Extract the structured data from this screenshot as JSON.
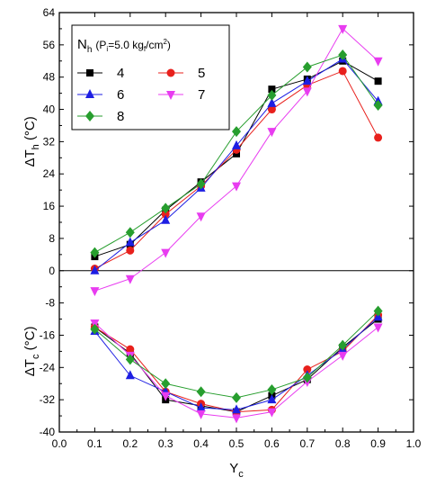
{
  "chart_data": {
    "type": "line",
    "x": [
      0.1,
      0.2,
      0.3,
      0.4,
      0.5,
      0.6,
      0.7,
      0.8,
      0.9
    ],
    "xlabel_main": "Y",
    "xlabel_sub": "c",
    "ylabel_top_main": "ΔT",
    "ylabel_top_sub": "h",
    "ylabel_top_unit": " (°C)",
    "ylabel_bottom_main": "ΔT",
    "ylabel_bottom_sub": "c",
    "ylabel_bottom_unit": " (°C)",
    "xlim": [
      0.0,
      1.0
    ],
    "ylim": [
      -40,
      64
    ],
    "xticks": [
      "0.0",
      "0.1",
      "0.2",
      "0.3",
      "0.4",
      "0.5",
      "0.6",
      "0.7",
      "0.8",
      "0.9",
      "1.0"
    ],
    "yticks": [
      "-40",
      "-32",
      "-24",
      "-16",
      "-8",
      "0",
      "8",
      "16",
      "24",
      "32",
      "40",
      "48",
      "56",
      "64"
    ],
    "legend": {
      "title_prefix": "N",
      "title_sub": "h",
      "title_paren": "(P",
      "title_paren_sub": "i",
      "title_value": "=5.0 kg",
      "title_unit_sub": "f",
      "title_unit": "/cm",
      "title_unit_sup": "2",
      "title_close": ")",
      "placement": "top-left"
    },
    "series": [
      {
        "name": "4",
        "color": "#000000",
        "marker": "square",
        "hot": [
          3.5,
          6.5,
          15.0,
          22.0,
          29.0,
          45.0,
          47.5,
          52.0,
          47.0
        ],
        "cold": [
          -14.0,
          -20.5,
          -32.0,
          -33.5,
          -35.0,
          -31.0,
          -27.0,
          -19.0,
          -12.0
        ]
      },
      {
        "name": "5",
        "color": "#e8201c",
        "marker": "circle",
        "hot": [
          0.5,
          5.0,
          14.0,
          21.0,
          30.0,
          40.0,
          46.0,
          49.5,
          33.0
        ],
        "cold": [
          -14.0,
          -19.5,
          -30.0,
          -33.0,
          -35.0,
          -34.5,
          -24.5,
          -20.0,
          -11.0
        ]
      },
      {
        "name": "6",
        "color": "#1d1ee3",
        "marker": "triangle-up",
        "hot": [
          0.0,
          7.0,
          12.5,
          20.5,
          31.0,
          41.5,
          47.0,
          52.5,
          42.0
        ],
        "cold": [
          -15.0,
          -26.0,
          -30.0,
          -34.0,
          -34.5,
          -32.0,
          -26.0,
          -19.5,
          -11.5
        ]
      },
      {
        "name": "7",
        "color": "#e83cf0",
        "marker": "triangle-down",
        "hot": [
          -5.0,
          -2.0,
          4.5,
          13.5,
          21.0,
          34.5,
          44.5,
          60.0,
          52.0
        ],
        "cold": [
          -13.0,
          -21.0,
          -31.0,
          -35.5,
          -36.5,
          -35.0,
          -27.5,
          -21.0,
          -14.0
        ]
      },
      {
        "name": "8",
        "color": "#279e2e",
        "marker": "diamond",
        "hot": [
          4.5,
          9.5,
          15.5,
          21.5,
          34.5,
          43.5,
          50.5,
          53.5,
          41.0
        ],
        "cold": [
          -14.5,
          -22.0,
          -28.0,
          -30.0,
          -31.5,
          -29.5,
          -26.5,
          -18.5,
          -10.0
        ]
      }
    ]
  }
}
